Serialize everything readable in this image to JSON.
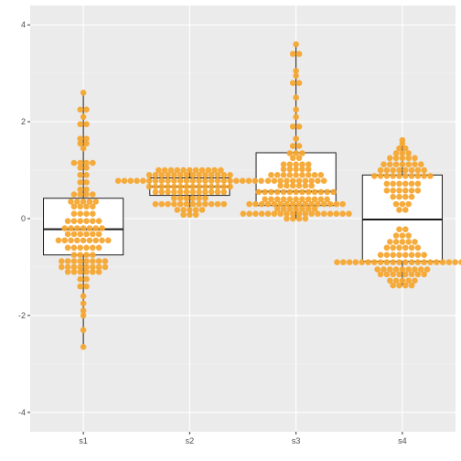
{
  "chart_data": {
    "type": "boxplot-beeswarm",
    "title": "",
    "xlabel": "",
    "ylabel": "",
    "categories": [
      "s1",
      "s2",
      "s3",
      "s4"
    ],
    "ylim": [
      -4.4,
      4.4
    ],
    "yticks": [
      -4,
      -2,
      0,
      2,
      4
    ],
    "ytick_labels": [
      "-4",
      "-2",
      "0",
      "2",
      "4"
    ],
    "grid": true,
    "colors": {
      "panel": "#ebebeb",
      "grid_major": "#ffffff",
      "grid_minor": "#f4f4f4",
      "point": "#f5a833",
      "box_fill": "#ffffff",
      "box_line": "#1a1a1a"
    },
    "boxes": [
      {
        "category": "s1",
        "min": -2.65,
        "q1": -0.75,
        "median": -0.22,
        "q3": 0.42,
        "max": 2.6
      },
      {
        "category": "s2",
        "min": 0.08,
        "q1": 0.48,
        "median": 0.66,
        "q3": 0.84,
        "max": 1.0
      },
      {
        "category": "s3",
        "min": 0.0,
        "q1": 0.27,
        "median": 0.56,
        "q3": 1.36,
        "max": 3.6
      },
      {
        "category": "s4",
        "min": -1.38,
        "q1": -0.88,
        "median": -0.02,
        "q3": 0.9,
        "max": 1.62
      }
    ],
    "points": [
      {
        "category": "s1",
        "bins": [
          [
            -2.65,
            1
          ],
          [
            -2.3,
            1
          ],
          [
            -2.0,
            1
          ],
          [
            -1.9,
            1
          ],
          [
            -1.75,
            1
          ],
          [
            -1.6,
            1
          ],
          [
            -1.4,
            2
          ],
          [
            -1.25,
            2
          ],
          [
            -1.1,
            6
          ],
          [
            -1.0,
            8
          ],
          [
            -0.88,
            8
          ],
          [
            -0.75,
            4
          ],
          [
            -0.6,
            6
          ],
          [
            -0.45,
            9
          ],
          [
            -0.32,
            6
          ],
          [
            -0.2,
            7
          ],
          [
            -0.05,
            6
          ],
          [
            0.1,
            4
          ],
          [
            0.25,
            4
          ],
          [
            0.35,
            5
          ],
          [
            0.5,
            4
          ],
          [
            0.6,
            2
          ],
          [
            0.75,
            2
          ],
          [
            0.9,
            2
          ],
          [
            1.05,
            2
          ],
          [
            1.15,
            4
          ],
          [
            1.45,
            1
          ],
          [
            1.55,
            2
          ],
          [
            1.65,
            2
          ],
          [
            1.95,
            2
          ],
          [
            2.1,
            1
          ],
          [
            2.25,
            2
          ],
          [
            2.6,
            1
          ]
        ]
      },
      {
        "category": "s2",
        "bins": [
          [
            0.08,
            3
          ],
          [
            0.18,
            5
          ],
          [
            0.3,
            12
          ],
          [
            0.42,
            6
          ],
          [
            0.55,
            12
          ],
          [
            0.66,
            14
          ],
          [
            0.78,
            24
          ],
          [
            0.9,
            14
          ],
          [
            1.0,
            11
          ]
        ]
      },
      {
        "category": "s3",
        "bins": [
          [
            0.0,
            4
          ],
          [
            0.1,
            18
          ],
          [
            0.2,
            7
          ],
          [
            0.3,
            16
          ],
          [
            0.4,
            11
          ],
          [
            0.55,
            13
          ],
          [
            0.68,
            6
          ],
          [
            0.78,
            10
          ],
          [
            0.9,
            9
          ],
          [
            1.02,
            5
          ],
          [
            1.12,
            5
          ],
          [
            1.25,
            2
          ],
          [
            1.35,
            3
          ],
          [
            1.5,
            2
          ],
          [
            1.65,
            1
          ],
          [
            1.9,
            2
          ],
          [
            2.1,
            1
          ],
          [
            2.25,
            1
          ],
          [
            2.5,
            1
          ],
          [
            2.8,
            2
          ],
          [
            2.95,
            1
          ],
          [
            3.05,
            1
          ],
          [
            3.4,
            2
          ],
          [
            3.6,
            1
          ]
        ]
      },
      {
        "category": "s4",
        "bins": [
          [
            -1.38,
            4
          ],
          [
            -1.28,
            5
          ],
          [
            -1.15,
            8
          ],
          [
            -1.05,
            9
          ],
          [
            -0.9,
            22
          ],
          [
            -0.75,
            8
          ],
          [
            -0.6,
            6
          ],
          [
            -0.48,
            5
          ],
          [
            -0.35,
            3
          ],
          [
            -0.22,
            2
          ],
          [
            0.18,
            2
          ],
          [
            0.3,
            3
          ],
          [
            0.45,
            4
          ],
          [
            0.58,
            6
          ],
          [
            0.72,
            6
          ],
          [
            0.88,
            10
          ],
          [
            1.0,
            8
          ],
          [
            1.12,
            7
          ],
          [
            1.25,
            5
          ],
          [
            1.35,
            3
          ],
          [
            1.45,
            2
          ],
          [
            1.55,
            1
          ],
          [
            1.62,
            1
          ]
        ]
      }
    ]
  }
}
